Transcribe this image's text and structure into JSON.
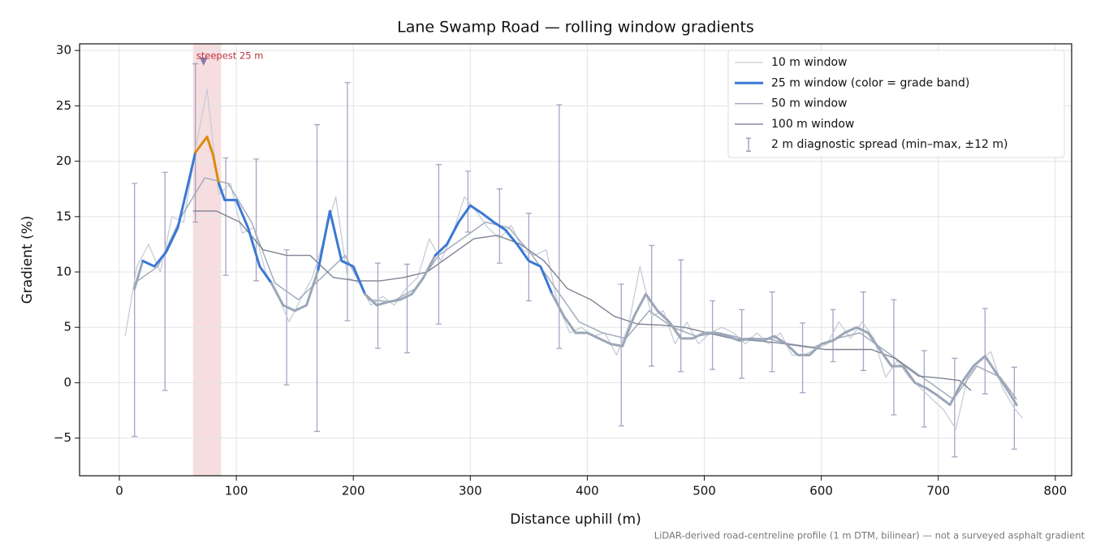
{
  "chart_data": {
    "type": "line",
    "title": "Lane Swamp Road — rolling window gradients",
    "xlabel": "Distance uphill (m)",
    "ylabel": "Gradient (%)",
    "footnote": "LiDAR-derived road-centreline profile (1 m DTM, bilinear) — not a surveyed asphalt gradient",
    "xlim": [
      -34,
      814
    ],
    "ylim": [
      -8.4,
      30.6
    ],
    "xticks": [
      0,
      100,
      200,
      300,
      400,
      500,
      600,
      700,
      800
    ],
    "yticks": [
      {
        "value": -5,
        "label": "−5"
      },
      0,
      5,
      10,
      15,
      20,
      25,
      30
    ],
    "grid": true,
    "legend": "upper right",
    "highlight_span": [
      63,
      87
    ],
    "highlight_color": "#f3d3d6",
    "annotation": {
      "text": "steepest 25 m",
      "x": 72,
      "y": 29,
      "color": "#c0303a"
    },
    "series": [
      {
        "name": "10 m window",
        "color": "#c6cdd6",
        "width": 1.3,
        "x": [
          5,
          15,
          25,
          35,
          45,
          55,
          65,
          75,
          85,
          95,
          105,
          115,
          125,
          135,
          145,
          155,
          165,
          175,
          185,
          195,
          205,
          215,
          225,
          235,
          245,
          255,
          265,
          275,
          285,
          295,
          305,
          315,
          325,
          335,
          345,
          355,
          365,
          375,
          385,
          395,
          405,
          415,
          425,
          435,
          445,
          455,
          465,
          475,
          485,
          495,
          505,
          515,
          525,
          535,
          545,
          555,
          565,
          575,
          585,
          595,
          605,
          615,
          625,
          635,
          645,
          655,
          665,
          675,
          685,
          695,
          705,
          715,
          725,
          735,
          745,
          755,
          765,
          772
        ],
        "values": [
          4.2,
          10.5,
          12.5,
          10,
          15,
          14.5,
          21,
          26.5,
          17,
          18,
          13.5,
          14,
          10,
          8,
          5.5,
          7.5,
          9.5,
          13,
          16.8,
          9.5,
          9,
          7,
          7.8,
          7,
          8.5,
          9.5,
          13,
          11,
          13.5,
          16.8,
          15.5,
          14,
          13,
          14.2,
          12,
          11.5,
          12,
          7,
          4.5,
          5,
          4.2,
          4.5,
          2.5,
          5,
          10.5,
          6,
          6.5,
          3.5,
          5.5,
          3.5,
          4.5,
          5,
          4.5,
          3.5,
          4.5,
          3.5,
          4.5,
          2.5,
          2.5,
          3,
          3.5,
          5.5,
          4,
          5.5,
          4,
          0.5,
          2,
          0.5,
          -0.5,
          -1.5,
          -2.5,
          -4.2,
          0.5,
          2,
          2.8,
          -0.5,
          -2.3,
          -3.2
        ]
      },
      {
        "name": "25 m window (color = grade band)",
        "color": "#3a78d6",
        "width": 3,
        "grade_bands": {
          "edges": [
            10,
            20
          ],
          "colors": [
            "#9ba7b8",
            "#3a78d6",
            "#dc8a0e"
          ]
        },
        "x": [
          13,
          20,
          30,
          40,
          50,
          60,
          65,
          70,
          75,
          80,
          85,
          90,
          100,
          110,
          120,
          130,
          140,
          150,
          160,
          170,
          180,
          190,
          200,
          210,
          220,
          230,
          240,
          250,
          260,
          270,
          280,
          290,
          300,
          310,
          320,
          330,
          340,
          350,
          360,
          370,
          380,
          390,
          400,
          410,
          420,
          430,
          440,
          450,
          460,
          470,
          480,
          490,
          500,
          510,
          520,
          530,
          540,
          550,
          560,
          570,
          580,
          590,
          600,
          610,
          620,
          630,
          640,
          650,
          660,
          670,
          680,
          690,
          700,
          710,
          720,
          730,
          740,
          750,
          760,
          767
        ],
        "values": [
          8.5,
          11,
          10.5,
          11.8,
          14,
          18.5,
          20.8,
          21.5,
          22.2,
          20.6,
          18,
          16.5,
          16.5,
          14,
          10.5,
          9,
          7,
          6.5,
          7,
          10.2,
          15.5,
          11,
          10.5,
          8,
          7,
          7.3,
          7.5,
          8,
          9.5,
          11.5,
          12.5,
          14.5,
          16,
          15.3,
          14.5,
          13.8,
          12.5,
          11,
          10.5,
          8,
          6,
          4.5,
          4.5,
          4,
          3.5,
          3.3,
          6,
          8,
          6.5,
          5.5,
          4,
          4,
          4.5,
          4.5,
          4.2,
          3.8,
          4,
          3.8,
          4.2,
          3.5,
          2.5,
          2.5,
          3.5,
          3.8,
          4.5,
          5,
          4.5,
          3,
          1.5,
          1.5,
          0,
          -0.5,
          -1.2,
          -2,
          0,
          1.5,
          2.4,
          0.8,
          -0.8,
          -2
        ]
      },
      {
        "name": "50 m window",
        "color": "#a3acbc",
        "width": 1.5,
        "x": [
          13,
          33,
          53,
          73,
          93,
          113,
          133,
          153,
          173,
          193,
          213,
          233,
          253,
          273,
          293,
          313,
          333,
          353,
          373,
          393,
          413,
          433,
          453,
          473,
          493,
          513,
          533,
          553,
          573,
          593,
          613,
          633,
          653,
          673,
          693,
          713,
          733,
          753,
          767
        ],
        "values": [
          9,
          10.5,
          15,
          18.5,
          18,
          14.5,
          9,
          7.5,
          9.5,
          11.5,
          7.5,
          7.3,
          8.5,
          11.5,
          13,
          14.5,
          14,
          11.5,
          8.5,
          5.5,
          4.5,
          4,
          6.5,
          5,
          4.2,
          4.5,
          4,
          4,
          3.5,
          3.2,
          4,
          4.5,
          3,
          1.5,
          0,
          -1.5,
          1.5,
          0.5,
          -1.5
        ]
      },
      {
        "name": "100 m window",
        "color": "#7d8494",
        "width": 1.4,
        "x": [
          63,
          83,
          103,
          123,
          143,
          163,
          183,
          203,
          223,
          243,
          263,
          283,
          303,
          323,
          343,
          363,
          383,
          403,
          423,
          443,
          463,
          483,
          503,
          523,
          543,
          563,
          583,
          603,
          623,
          643,
          663,
          683,
          703,
          718,
          728
        ],
        "values": [
          15.5,
          15.5,
          14.5,
          12,
          11.5,
          11.5,
          9.5,
          9.2,
          9.2,
          9.5,
          10,
          11.5,
          13,
          13.3,
          12.5,
          11,
          8.5,
          7.5,
          6,
          5.3,
          5.2,
          5,
          4.5,
          4,
          3.8,
          3.6,
          3.3,
          3,
          3,
          3,
          2.2,
          0.6,
          0.4,
          0.2,
          -0.7
        ]
      }
    ],
    "errorbars": {
      "name": "2 m diagnostic spread (min–max, ±12 m)",
      "color": "#9a93b9",
      "x": [
        13,
        39,
        65,
        91,
        117,
        143,
        169,
        195,
        221,
        246,
        273,
        298,
        325,
        350,
        376,
        429,
        455,
        480,
        507,
        532,
        558,
        584,
        610,
        636,
        662,
        688,
        714,
        740,
        765
      ],
      "low": [
        -4.85,
        -0.7,
        14.5,
        9.7,
        9.2,
        -0.2,
        -4.4,
        5.6,
        3.1,
        2.7,
        5.3,
        13.6,
        10.8,
        7.4,
        3.1,
        -3.9,
        1.5,
        1.0,
        1.2,
        0.4,
        1.0,
        -0.9,
        1.9,
        1.1,
        -2.9,
        -4.0,
        -6.7,
        -1.0,
        -6.0
      ],
      "high": [
        18,
        19,
        28.8,
        20.3,
        20.2,
        12,
        23.3,
        27.1,
        10.8,
        10.7,
        19.7,
        19.1,
        17.5,
        15.3,
        25.1,
        8.9,
        12.4,
        11.1,
        7.4,
        6.6,
        8.2,
        5.4,
        6.6,
        8.2,
        7.5,
        2.9,
        2.2,
        6.7,
        1.4
      ]
    }
  }
}
